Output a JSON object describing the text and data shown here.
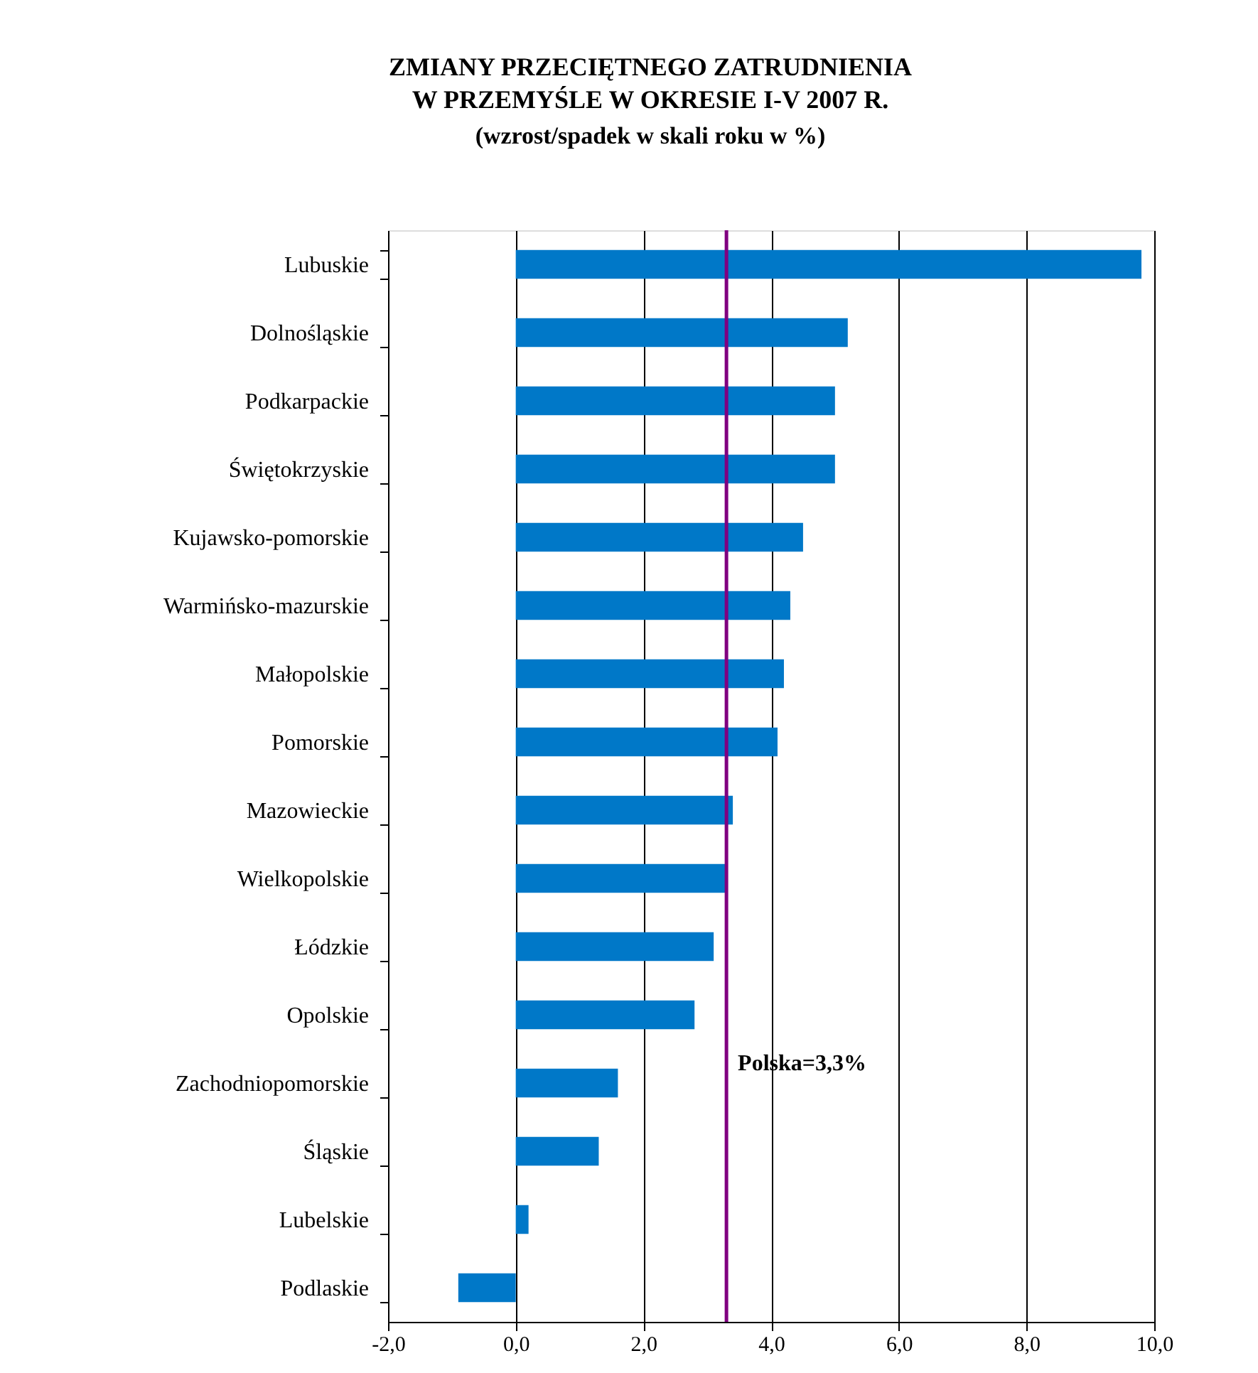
{
  "chart_data": {
    "type": "bar",
    "orientation": "horizontal",
    "title": "ZMIANY PRZECIĘTNEGO ZATRUDNIENIA\nW PRZEMYŚLE W OKRESIE I-V 2007 R.",
    "subtitle": "(wzrost/spadek w skali roku w %)",
    "categories": [
      "Lubuskie",
      "Dolnośląskie",
      "Podkarpackie",
      "Świętokrzyskie",
      "Kujawsko-pomorskie",
      "Warmińsko-mazurskie",
      "Małopolskie",
      "Pomorskie",
      "Mazowieckie",
      "Wielkopolskie",
      "Łódzkie",
      "Opolskie",
      "Zachodniopomorskie",
      "Śląskie",
      "Lubelskie",
      "Podlaskie"
    ],
    "values": [
      9.8,
      5.2,
      5.0,
      5.0,
      4.5,
      4.3,
      4.2,
      4.1,
      3.4,
      3.3,
      3.1,
      2.8,
      1.6,
      1.3,
      0.2,
      -0.9
    ],
    "color": "#0078c8",
    "xlim": [
      -2,
      10
    ],
    "xticks": [
      {
        "value": -2,
        "label": "-2,0"
      },
      {
        "value": 0,
        "label": "0,0"
      },
      {
        "value": 2,
        "label": "2,0"
      },
      {
        "value": 4,
        "label": "4,0"
      },
      {
        "value": 6,
        "label": "6,0"
      },
      {
        "value": 8,
        "label": "8,0"
      },
      {
        "value": 10,
        "label": "10,0"
      }
    ],
    "grid": "x",
    "ref_lines": [
      {
        "axis": "x",
        "value": 3.3,
        "label": "Polska=3,3%",
        "color": "#800080"
      }
    ]
  }
}
